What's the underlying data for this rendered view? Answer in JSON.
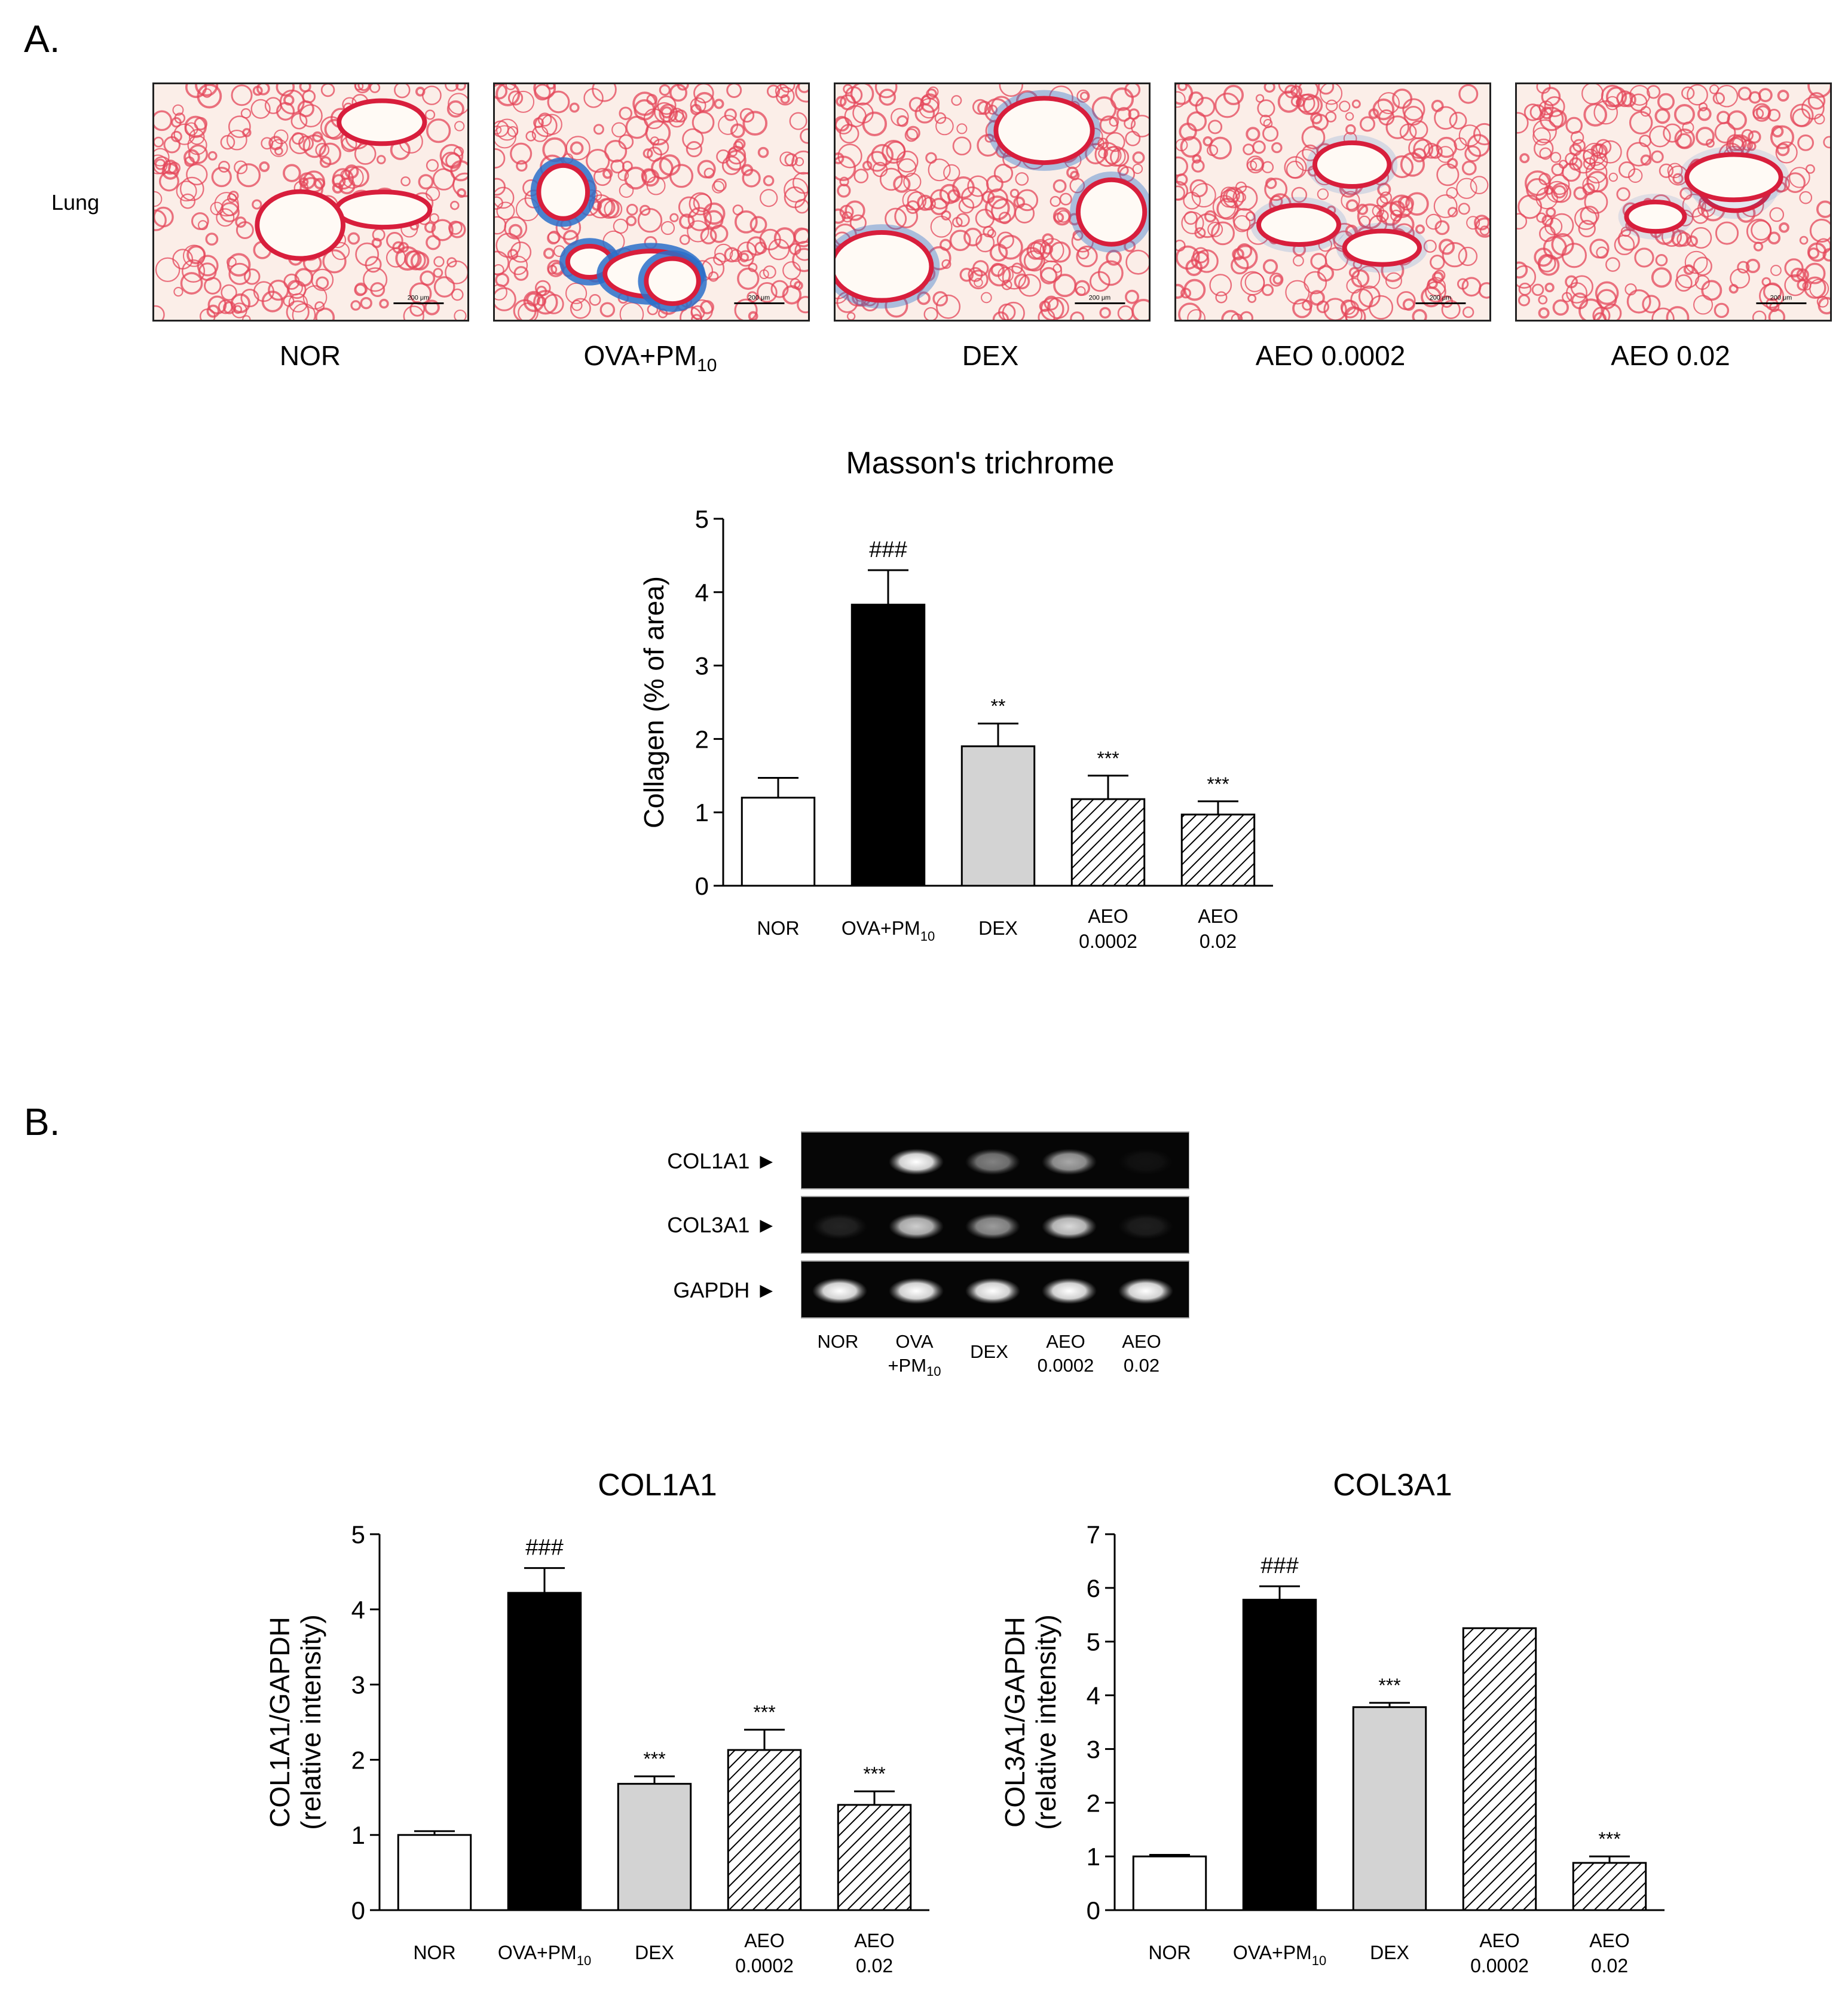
{
  "panel_a": {
    "label": "A.",
    "row_label": "Lung",
    "groups": [
      {
        "label": "NOR",
        "sub": ""
      },
      {
        "label": "OVA+PM",
        "sub": "10"
      },
      {
        "label": "DEX",
        "sub": ""
      },
      {
        "label": "AEO 0.0002",
        "sub": ""
      },
      {
        "label": "AEO 0.02",
        "sub": ""
      }
    ],
    "scale_bar_text": "200 μm",
    "stain_colors": {
      "tissue": "#e4455a",
      "background": "#fbeee8",
      "collagen": "#2a6fc9",
      "airway": "#d81e3c"
    }
  },
  "panel_b": {
    "label": "B.",
    "gel_rows": [
      "COL1A1 ►",
      "COL3A1 ►",
      "GAPDH ►"
    ],
    "gel_lanes": [
      {
        "line1": "NOR",
        "line2": "",
        "sub": ""
      },
      {
        "line1": "OVA",
        "line2": "+PM",
        "sub": "10"
      },
      {
        "line1": "DEX",
        "line2": "",
        "sub": ""
      },
      {
        "line1": "AEO",
        "line2": "0.0002",
        "sub": ""
      },
      {
        "line1": "AEO",
        "line2": "0.02",
        "sub": ""
      }
    ],
    "band_intensity": {
      "COL1A1": [
        0.0,
        1.0,
        0.5,
        0.65,
        0.05
      ],
      "COL3A1": [
        0.12,
        0.8,
        0.6,
        0.85,
        0.1
      ],
      "GAPDH": [
        1.0,
        1.0,
        1.0,
        1.0,
        1.0
      ]
    }
  },
  "chart_data": [
    {
      "id": "masson",
      "type": "bar",
      "title": "Masson's trichrome",
      "ylabel": [
        "Collagen (% of area)"
      ],
      "ylim": [
        0,
        5
      ],
      "yticks": [
        0,
        1,
        2,
        3,
        4,
        5
      ],
      "categories": [
        {
          "line1": "NOR",
          "line2": "",
          "sub": ""
        },
        {
          "line1": "OVA+PM",
          "line2": "",
          "sub": "10"
        },
        {
          "line1": "DEX",
          "line2": "",
          "sub": ""
        },
        {
          "line1": "AEO",
          "line2": "0.0002",
          "sub": ""
        },
        {
          "line1": "AEO",
          "line2": "0.02",
          "sub": ""
        }
      ],
      "values": [
        1.2,
        3.83,
        1.9,
        1.18,
        0.97
      ],
      "errors": [
        0.27,
        0.47,
        0.31,
        0.32,
        0.18
      ],
      "annotations": [
        "",
        "###",
        "**",
        "***",
        "***"
      ],
      "fills": [
        "white",
        "black",
        "lightgray",
        "hatch",
        "hatch"
      ],
      "grid": false
    },
    {
      "id": "col1a1",
      "type": "bar",
      "title": "COL1A1",
      "ylabel": [
        "COL1A1/GAPDH",
        "(relative intensity)"
      ],
      "ylim": [
        0,
        5
      ],
      "yticks": [
        0,
        1,
        2,
        3,
        4,
        5
      ],
      "categories": [
        {
          "line1": "NOR",
          "line2": "",
          "sub": ""
        },
        {
          "line1": "OVA+PM",
          "line2": "",
          "sub": "10"
        },
        {
          "line1": "DEX",
          "line2": "",
          "sub": ""
        },
        {
          "line1": "AEO",
          "line2": "0.0002",
          "sub": ""
        },
        {
          "line1": "AEO",
          "line2": "0.02",
          "sub": ""
        }
      ],
      "values": [
        1.0,
        4.22,
        1.68,
        2.13,
        1.4
      ],
      "errors": [
        0.05,
        0.33,
        0.1,
        0.27,
        0.18
      ],
      "annotations": [
        "",
        "###",
        "***",
        "***",
        "***"
      ],
      "fills": [
        "white",
        "black",
        "lightgray",
        "hatch",
        "hatch"
      ],
      "grid": false
    },
    {
      "id": "col3a1",
      "type": "bar",
      "title": "COL3A1",
      "ylabel": [
        "COL3A1/GAPDH",
        "(relative intensity)"
      ],
      "ylim": [
        0,
        7
      ],
      "yticks": [
        0,
        1,
        2,
        3,
        4,
        5,
        6,
        7
      ],
      "categories": [
        {
          "line1": "NOR",
          "line2": "",
          "sub": ""
        },
        {
          "line1": "OVA+PM",
          "line2": "",
          "sub": "10"
        },
        {
          "line1": "DEX",
          "line2": "",
          "sub": ""
        },
        {
          "line1": "AEO",
          "line2": "0.0002",
          "sub": ""
        },
        {
          "line1": "AEO",
          "line2": "0.02",
          "sub": ""
        }
      ],
      "values": [
        1.0,
        5.78,
        3.78,
        5.25,
        0.88
      ],
      "errors": [
        0.03,
        0.25,
        0.08,
        0.0,
        0.12
      ],
      "annotations": [
        "",
        "###",
        "***",
        "",
        "***"
      ],
      "fills": [
        "white",
        "black",
        "lightgray",
        "hatch",
        "hatch"
      ],
      "grid": false
    }
  ]
}
